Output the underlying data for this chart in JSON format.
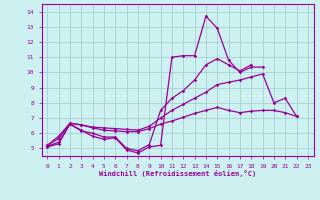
{
  "background_color": "#cdf0f0",
  "line_color": "#990099",
  "xlabel": "Windchill (Refroidissement éolien,°C)",
  "xlim": [
    -0.5,
    23.5
  ],
  "ylim": [
    4.5,
    14.5
  ],
  "xticks": [
    0,
    1,
    2,
    3,
    4,
    5,
    6,
    7,
    8,
    9,
    10,
    11,
    12,
    13,
    14,
    15,
    16,
    17,
    18,
    19,
    20,
    21,
    22,
    23
  ],
  "yticks": [
    5,
    6,
    7,
    8,
    9,
    10,
    11,
    12,
    13,
    14
  ],
  "grid_color": "#a0c8c8",
  "series": [
    {
      "x": [
        0,
        1,
        2,
        3,
        4,
        5,
        6,
        7,
        8,
        9,
        10,
        11,
        12,
        13,
        14,
        15,
        16,
        17,
        18,
        19
      ],
      "y": [
        5.1,
        5.3,
        6.6,
        6.2,
        5.8,
        5.6,
        5.7,
        4.9,
        4.7,
        5.1,
        5.2,
        11.0,
        11.1,
        11.1,
        13.7,
        12.9,
        10.8,
        10.0,
        10.35,
        10.35
      ]
    },
    {
      "x": [
        0,
        1,
        2,
        3,
        4,
        5,
        6,
        7,
        8,
        9,
        10,
        11,
        12,
        13,
        14,
        15,
        16,
        17,
        18
      ],
      "y": [
        5.15,
        5.4,
        6.6,
        6.15,
        6.0,
        5.75,
        5.75,
        5.0,
        4.85,
        5.25,
        7.5,
        8.3,
        8.8,
        9.5,
        10.5,
        10.9,
        10.5,
        10.1,
        10.5
      ]
    },
    {
      "x": [
        0,
        1,
        2,
        3,
        4,
        5,
        6,
        7,
        8,
        9,
        10,
        11,
        12,
        13,
        14,
        15,
        16,
        17,
        18,
        19,
        20,
        21,
        22
      ],
      "y": [
        5.2,
        5.8,
        6.65,
        6.55,
        6.4,
        6.35,
        6.3,
        6.25,
        6.2,
        6.45,
        7.0,
        7.5,
        7.9,
        8.3,
        8.7,
        9.2,
        9.35,
        9.5,
        9.7,
        9.9,
        8.0,
        8.3,
        7.1
      ]
    },
    {
      "x": [
        0,
        1,
        2,
        3,
        4,
        5,
        6,
        7,
        8,
        9,
        10,
        11,
        12,
        13,
        14,
        15,
        16,
        17,
        18,
        19,
        20,
        21,
        22
      ],
      "y": [
        5.2,
        5.65,
        6.65,
        6.55,
        6.35,
        6.2,
        6.15,
        6.1,
        6.1,
        6.3,
        6.6,
        6.8,
        7.05,
        7.3,
        7.5,
        7.7,
        7.5,
        7.35,
        7.45,
        7.5,
        7.5,
        7.35,
        7.1
      ]
    }
  ]
}
